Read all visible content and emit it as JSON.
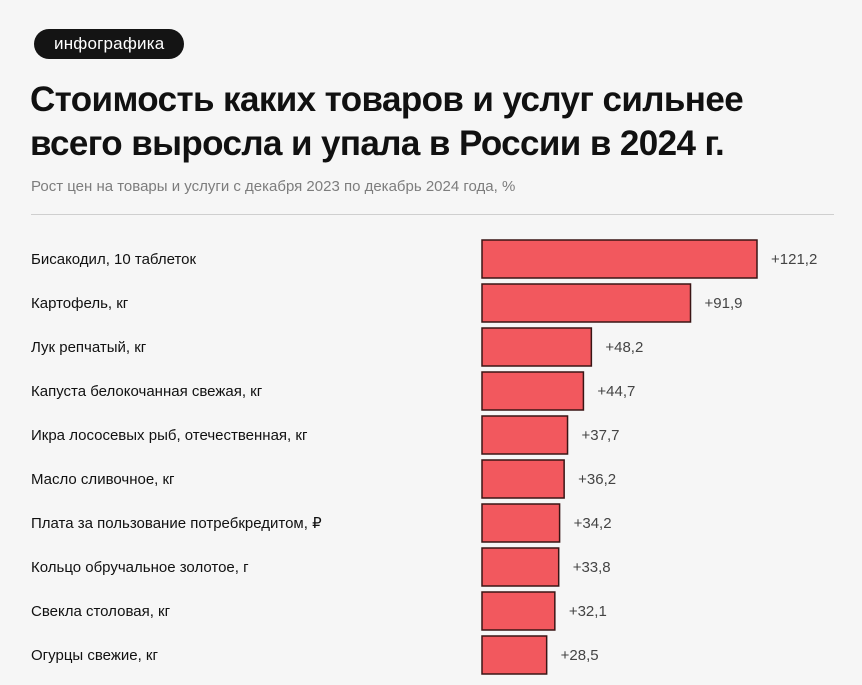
{
  "badge": "инфографика",
  "title_lines": [
    "Стоимость каких товаров и услуг сильнее",
    "всего выросла и упала в России в 2024 г."
  ],
  "subtitle": "Рост цен на товары и услуги с декабря 2023 по декабрь 2024 года, %",
  "colors": {
    "bar_fill": "#f2585e",
    "bar_stroke": "#3a1515"
  },
  "chart_data": {
    "type": "bar",
    "orientation": "horizontal",
    "categories": [
      "Бисакодил, 10 таблеток",
      "Картофель, кг",
      "Лук репчатый, кг",
      "Капуста белокочанная свежая, кг",
      "Икра лососевых рыб, отечественная, кг",
      "Масло сливочное, кг",
      "Плата за пользование потребкредитом, ₽",
      "Кольцо обручальное золотое, г",
      "Свекла столовая, кг",
      "Огурцы свежие, кг"
    ],
    "values": [
      121.2,
      91.9,
      48.2,
      44.7,
      37.7,
      36.2,
      34.2,
      33.8,
      32.1,
      28.5
    ],
    "value_labels": [
      "+121,2",
      "+91,9",
      "+48,2",
      "+44,7",
      "+37,7",
      "+36,2",
      "+34,2",
      "+33,8",
      "+32,1",
      "+28,5"
    ],
    "title": "Стоимость каких товаров и услуг сильнее всего выросла и упала в России в 2024 г.",
    "subtitle": "Рост цен на товары и услуги с декабря 2023 по декабрь 2024 года, %",
    "xlabel": "",
    "ylabel": "",
    "xlim": [
      0,
      121.2
    ],
    "grid": false,
    "legend": "none"
  }
}
